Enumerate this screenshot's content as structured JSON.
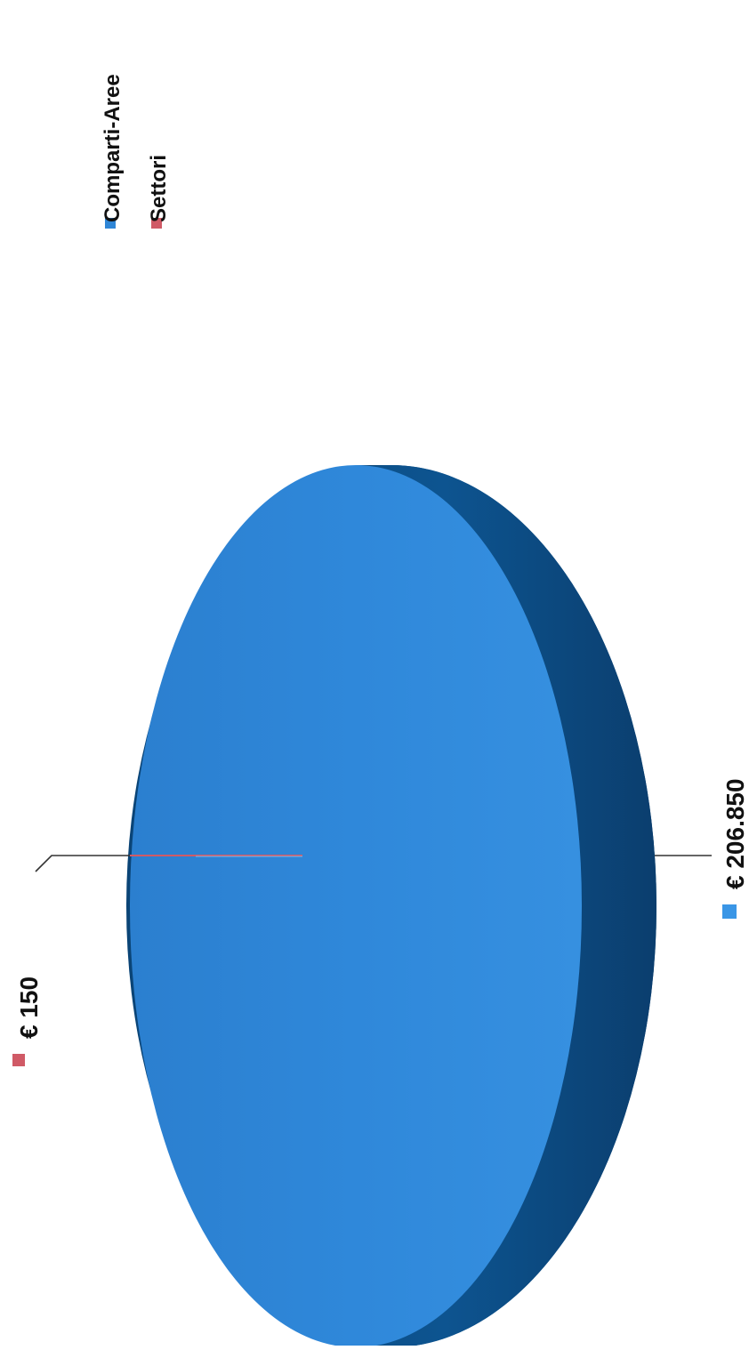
{
  "chart_data": {
    "type": "pie",
    "style": "3d",
    "orientation": "rotated 90° counter-clockwise",
    "series": [
      {
        "name": "Comparti-Aree",
        "value": 206850,
        "label": "€ 206.850",
        "color": "#2f86d6",
        "side_color": "#0d4f86"
      },
      {
        "name": "Settori",
        "value": 150,
        "label": "€ 150",
        "color": "#d05a66",
        "side_color": "#8f2f38"
      }
    ],
    "legend": {
      "placement": "top-right",
      "entries": [
        "Comparti-Aree",
        "Settori"
      ]
    }
  }
}
